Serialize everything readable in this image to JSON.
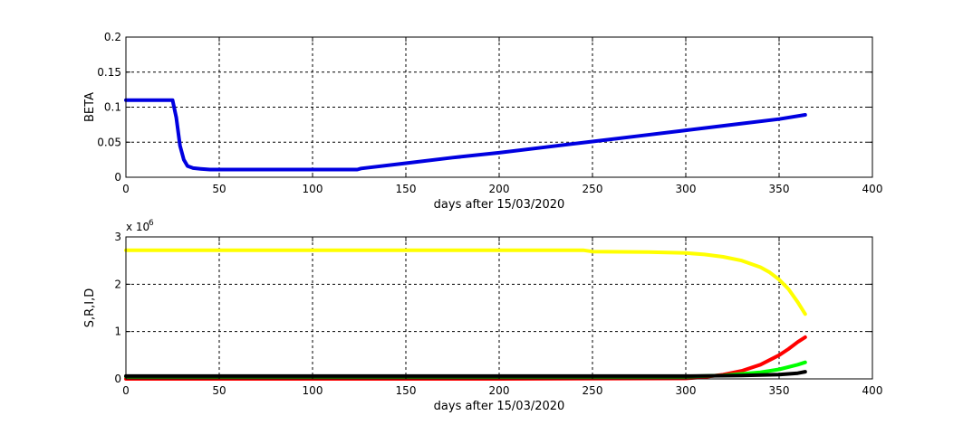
{
  "chart_data": [
    {
      "type": "line",
      "title": "",
      "xlabel": "days after 15/03/2020",
      "ylabel": "BETA",
      "xlim": [
        0,
        400
      ],
      "ylim": [
        0,
        0.2
      ],
      "xticks": [
        "0",
        "50",
        "100",
        "150",
        "200",
        "250",
        "300",
        "350",
        "400"
      ],
      "yticks": [
        "0",
        "0.05",
        "0.1",
        "0.15",
        "0.2"
      ],
      "grid": true,
      "series": [
        {
          "color": "#0000e0",
          "x": [
            0,
            25,
            27,
            29,
            31,
            33,
            36,
            40,
            45,
            50,
            75,
            100,
            124,
            126,
            150,
            175,
            200,
            225,
            250,
            275,
            300,
            325,
            350,
            364
          ],
          "y": [
            0.11,
            0.11,
            0.085,
            0.045,
            0.025,
            0.016,
            0.013,
            0.012,
            0.011,
            0.011,
            0.011,
            0.011,
            0.011,
            0.0125,
            0.02,
            0.028,
            0.035,
            0.043,
            0.051,
            0.059,
            0.067,
            0.075,
            0.083,
            0.089
          ]
        }
      ]
    },
    {
      "type": "line",
      "title": "",
      "xlabel": "days after 15/03/2020",
      "ylabel": "S,R,I,D",
      "y_multiplier": "x 10",
      "y_multiplier_exp": "6",
      "xlim": [
        0,
        400
      ],
      "ylim": [
        0,
        3
      ],
      "xticks": [
        "0",
        "50",
        "100",
        "150",
        "200",
        "250",
        "300",
        "350",
        "400"
      ],
      "yticks": [
        "0",
        "1",
        "2",
        "3"
      ],
      "grid": true,
      "series": [
        {
          "color": "#ffff00",
          "x": [
            0,
            100,
            200,
            245,
            250,
            280,
            300,
            310,
            320,
            330,
            340,
            345,
            350,
            355,
            360,
            364
          ],
          "y": [
            2.72,
            2.72,
            2.72,
            2.72,
            2.69,
            2.68,
            2.66,
            2.63,
            2.58,
            2.5,
            2.36,
            2.25,
            2.1,
            1.9,
            1.62,
            1.37
          ]
        },
        {
          "color": "#ff0000",
          "x": [
            0,
            100,
            200,
            300,
            310,
            320,
            330,
            340,
            350,
            355,
            360,
            364
          ],
          "y": [
            0,
            0,
            0,
            0.01,
            0.04,
            0.09,
            0.17,
            0.3,
            0.5,
            0.63,
            0.78,
            0.88
          ]
        },
        {
          "color": "#00ff00",
          "x": [
            0,
            100,
            200,
            300,
            320,
            340,
            350,
            360,
            364
          ],
          "y": [
            0.05,
            0.05,
            0.05,
            0.05,
            0.07,
            0.14,
            0.2,
            0.3,
            0.35
          ]
        },
        {
          "color": "#000000",
          "x": [
            0,
            100,
            200,
            300,
            330,
            350,
            360,
            364
          ],
          "y": [
            0.06,
            0.06,
            0.06,
            0.06,
            0.07,
            0.09,
            0.12,
            0.15
          ]
        }
      ]
    }
  ]
}
